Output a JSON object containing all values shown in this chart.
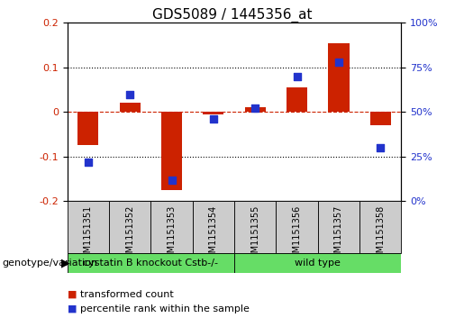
{
  "title": "GDS5089 / 1445356_at",
  "samples": [
    "GSM1151351",
    "GSM1151352",
    "GSM1151353",
    "GSM1151354",
    "GSM1151355",
    "GSM1151356",
    "GSM1151357",
    "GSM1151358"
  ],
  "transformed_count": [
    -0.075,
    0.02,
    -0.175,
    -0.005,
    0.01,
    0.055,
    0.155,
    -0.03
  ],
  "percentile_rank": [
    22,
    60,
    12,
    46,
    52,
    70,
    78,
    30
  ],
  "groups": [
    {
      "label": "cystatin B knockout Cstb-/-",
      "n": 4,
      "color": "#66dd66"
    },
    {
      "label": "wild type",
      "n": 4,
      "color": "#66dd66"
    }
  ],
  "group_label": "genotype/variation",
  "ylim_left": [
    -0.2,
    0.2
  ],
  "ylim_right": [
    0,
    100
  ],
  "yticks_left": [
    0.2,
    0.1,
    0.0,
    -0.1,
    -0.2
  ],
  "ytick_labels_left": [
    "0.2",
    "0.1",
    "0",
    "-0.1",
    "-0.2"
  ],
  "yticks_right": [
    100,
    75,
    50,
    25,
    0
  ],
  "ytick_labels_right": [
    "100%",
    "75%",
    "50%",
    "25%",
    "0%"
  ],
  "bar_color": "#cc2200",
  "dot_color": "#2233cc",
  "bar_width": 0.5,
  "dot_size": 40,
  "sample_cell_color": "#cccccc",
  "legend_bar_label": "transformed count",
  "legend_dot_label": "percentile rank within the sample",
  "title_fontsize": 11,
  "axis_tick_fontsize": 8,
  "sample_label_fontsize": 7,
  "group_label_fontsize": 8,
  "legend_fontsize": 8
}
